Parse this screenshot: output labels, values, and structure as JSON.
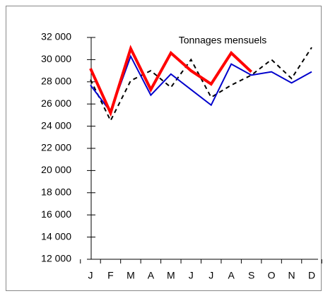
{
  "chart_data": {
    "type": "line",
    "title": "Tonnages mensuels",
    "categories": [
      "J",
      "F",
      "M",
      "A",
      "M",
      "J",
      "J",
      "A",
      "S",
      "O",
      "N",
      "D"
    ],
    "series": [
      {
        "color": "#000000",
        "dashed": true,
        "values": [
          28200,
          24500,
          28100,
          29000,
          27500,
          30000,
          26600,
          27700,
          28600,
          30000,
          28300,
          31100
        ]
      },
      {
        "color": "#0000cc",
        "values": [
          27700,
          25300,
          30300,
          26800,
          28700,
          27300,
          25900,
          29600,
          28600,
          28900,
          27900,
          28900
        ]
      },
      {
        "color": "#ff0000",
        "thick": true,
        "values": [
          29200,
          25200,
          31000,
          27300,
          30600,
          29000,
          27800,
          30600,
          28900,
          null,
          null,
          null
        ]
      }
    ],
    "ylim": [
      12000,
      32000
    ],
    "yticks": [
      {
        "value": 12000,
        "label": "12 000"
      },
      {
        "value": 14000,
        "label": "14 000"
      },
      {
        "value": 16000,
        "label": "16 000"
      },
      {
        "value": 18000,
        "label": "18 000"
      },
      {
        "value": 20000,
        "label": "20 000"
      },
      {
        "value": 22000,
        "label": "22 000"
      },
      {
        "value": 24000,
        "label": "24 000"
      },
      {
        "value": 26000,
        "label": "26 000"
      },
      {
        "value": 28000,
        "label": "28 000"
      },
      {
        "value": 30000,
        "label": "30 000"
      },
      {
        "value": 32000,
        "label": "32 000"
      }
    ]
  }
}
